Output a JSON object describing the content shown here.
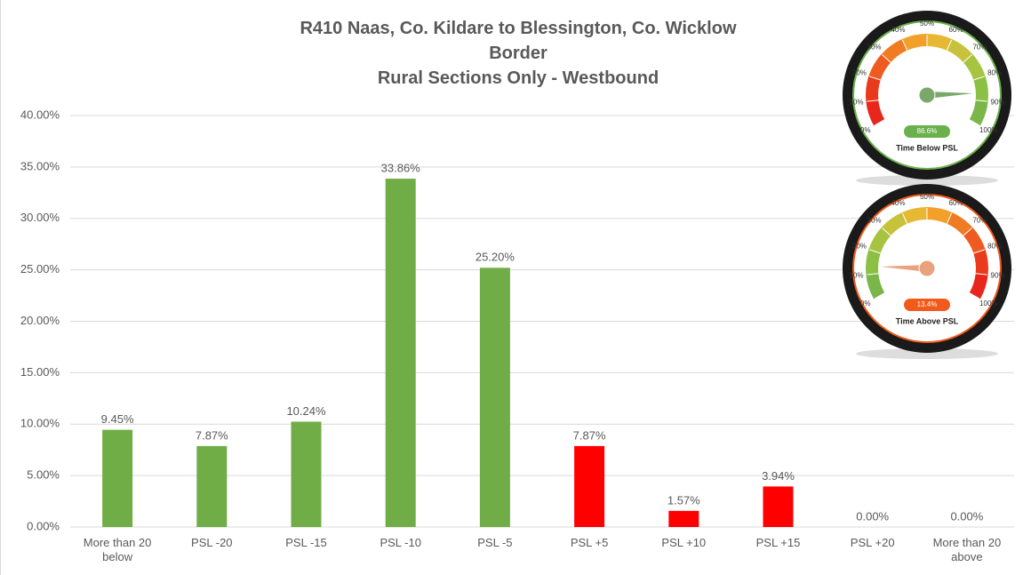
{
  "chart_data": [
    {
      "type": "bar",
      "title": [
        "R410 Naas, Co. Kildare to Blessington, Co. Wicklow",
        "Border",
        "Rural Sections Only - Westbound"
      ],
      "categories": [
        "More than 20 below",
        "PSL -20",
        "PSL -15",
        "PSL -10",
        "PSL -5",
        "PSL +5",
        "PSL +10",
        "PSL +15",
        "PSL +20",
        "More than 20 above"
      ],
      "values": [
        9.45,
        7.87,
        10.24,
        33.86,
        25.2,
        7.87,
        1.57,
        3.94,
        0,
        0
      ],
      "value_labels": [
        "9.45%",
        "7.87%",
        "10.24%",
        "33.86%",
        "25.20%",
        "7.87%",
        "1.57%",
        "3.94%",
        "0.00%",
        "0.00%"
      ],
      "colors": [
        "#70ad47",
        "#70ad47",
        "#70ad47",
        "#70ad47",
        "#70ad47",
        "#ff0000",
        "#ff0000",
        "#ff0000",
        "#ff0000",
        "#ff0000"
      ],
      "ylim": [
        0,
        40
      ],
      "yticks": [
        {
          "value": 0,
          "label": "0.00%"
        },
        {
          "value": 5,
          "label": "5.00%"
        },
        {
          "value": 10,
          "label": "10.00%"
        },
        {
          "value": 15,
          "label": "15.00%"
        },
        {
          "value": 20,
          "label": "20.00%"
        },
        {
          "value": 25,
          "label": "25.00%"
        },
        {
          "value": 30,
          "label": "30.00%"
        },
        {
          "value": 35,
          "label": "35.00%"
        },
        {
          "value": 40,
          "label": "40.00%"
        }
      ],
      "grid": true
    },
    {
      "type": "gauge",
      "title": "Time Below PSL",
      "value": 86.6,
      "value_label": "86.6%",
      "lim": [
        0,
        100
      ],
      "ticks": [
        {
          "value": 0,
          "label": "0%"
        },
        {
          "value": 10,
          "label": "10%"
        },
        {
          "value": 20,
          "label": "20%"
        },
        {
          "value": 30,
          "label": "30%"
        },
        {
          "value": 40,
          "label": "40%"
        },
        {
          "value": 50,
          "label": "50%"
        },
        {
          "value": 60,
          "label": "60%"
        },
        {
          "value": 70,
          "label": "70%"
        },
        {
          "value": 80,
          "label": "80%"
        },
        {
          "value": 90,
          "label": "90%"
        },
        {
          "value": 100,
          "label": "100%"
        }
      ],
      "arc_colors": [
        "#e8261b",
        "#ea3a1c",
        "#ee5a1f",
        "#f07b22",
        "#f2a02a",
        "#e6b834",
        "#c7c23c",
        "#a6c43f",
        "#8cc044",
        "#7ab648"
      ],
      "color": "#6ab04c",
      "needle_color": "#79a86a"
    },
    {
      "type": "gauge",
      "title": "Time Above PSL",
      "value": 13.4,
      "value_label": "13.4%",
      "lim": [
        0,
        100
      ],
      "ticks": [
        {
          "value": 0,
          "label": "0%"
        },
        {
          "value": 10,
          "label": "10%"
        },
        {
          "value": 20,
          "label": "20%"
        },
        {
          "value": 30,
          "label": "30%"
        },
        {
          "value": 40,
          "label": "40%"
        },
        {
          "value": 50,
          "label": "50%"
        },
        {
          "value": 60,
          "label": "60%"
        },
        {
          "value": 70,
          "label": "70%"
        },
        {
          "value": 80,
          "label": "80%"
        },
        {
          "value": 90,
          "label": "90%"
        },
        {
          "value": 100,
          "label": "100%"
        }
      ],
      "arc_colors": [
        "#7ab648",
        "#8cc044",
        "#a6c43f",
        "#c7c23c",
        "#e6b834",
        "#f2a02a",
        "#f07b22",
        "#ee5a1f",
        "#ea3a1c",
        "#e8261b"
      ],
      "color": "#f25a1c",
      "needle_color": "#e9a27c"
    }
  ]
}
